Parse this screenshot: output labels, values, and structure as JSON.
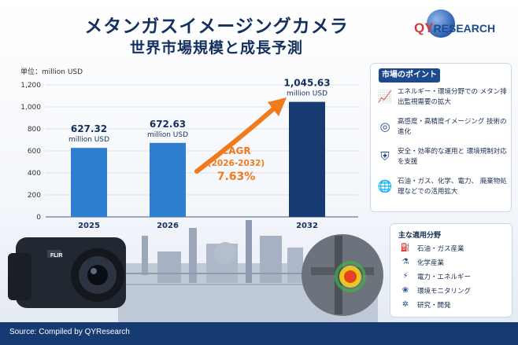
{
  "header": {
    "title_line1": "メタンガスイメージングカメラ",
    "title_line2": "世界市場規模と成長予測"
  },
  "logo": {
    "initials": "QY",
    "rest": "RESEARCH"
  },
  "chart_data": {
    "type": "bar",
    "unit_label": "単位：million USD",
    "categories": [
      "2025",
      "2026",
      "2032"
    ],
    "values": [
      627.32,
      672.63,
      1045.63
    ],
    "value_labels": [
      "627.32",
      "672.63",
      "1,045.63"
    ],
    "value_unit": "million USD",
    "ylim": [
      0,
      1200
    ],
    "yticks": [
      "0",
      "200",
      "400",
      "600",
      "800",
      "1,000",
      "1,200"
    ],
    "grid": true,
    "bar_colors": [
      "#2f7fd0",
      "#2f7fd0",
      "#163a72"
    ],
    "cagr": {
      "label": "CAGR",
      "period": "(2026-2032)",
      "value": "7.63%",
      "color": "#f07a1c"
    }
  },
  "points_panel": {
    "title": "市場のポイント",
    "items": [
      {
        "icon": "growth-chart-icon",
        "text": "エネルギー・環境分野での メタン排出監視需要の拡大"
      },
      {
        "icon": "target-icon",
        "text": "高感度・高精度イメージング 技術の進化"
      },
      {
        "icon": "shield-check-icon",
        "text": "安全・効率的な運用と 環境規制対応を支援"
      },
      {
        "icon": "globe-icon",
        "text": "石油・ガス、化学、電力、 廃棄物処理などでの活用拡大"
      }
    ]
  },
  "applications_panel": {
    "title": "主な適用分野",
    "items": [
      {
        "icon": "oil-rig-icon",
        "text": "石油・ガス産業"
      },
      {
        "icon": "flask-icon",
        "text": "化学産業"
      },
      {
        "icon": "lightning-icon",
        "text": "電力・エネルギー"
      },
      {
        "icon": "leaf-icon",
        "text": "環境モニタリング"
      },
      {
        "icon": "atom-icon",
        "text": "研究・開発"
      }
    ]
  },
  "camera": {
    "brand": "FLIR"
  },
  "footer": {
    "source": "Source: Compiled by QYResearch"
  },
  "colors": {
    "navy": "#163a72",
    "blue": "#2f7fd0",
    "orange": "#f07a1c"
  }
}
